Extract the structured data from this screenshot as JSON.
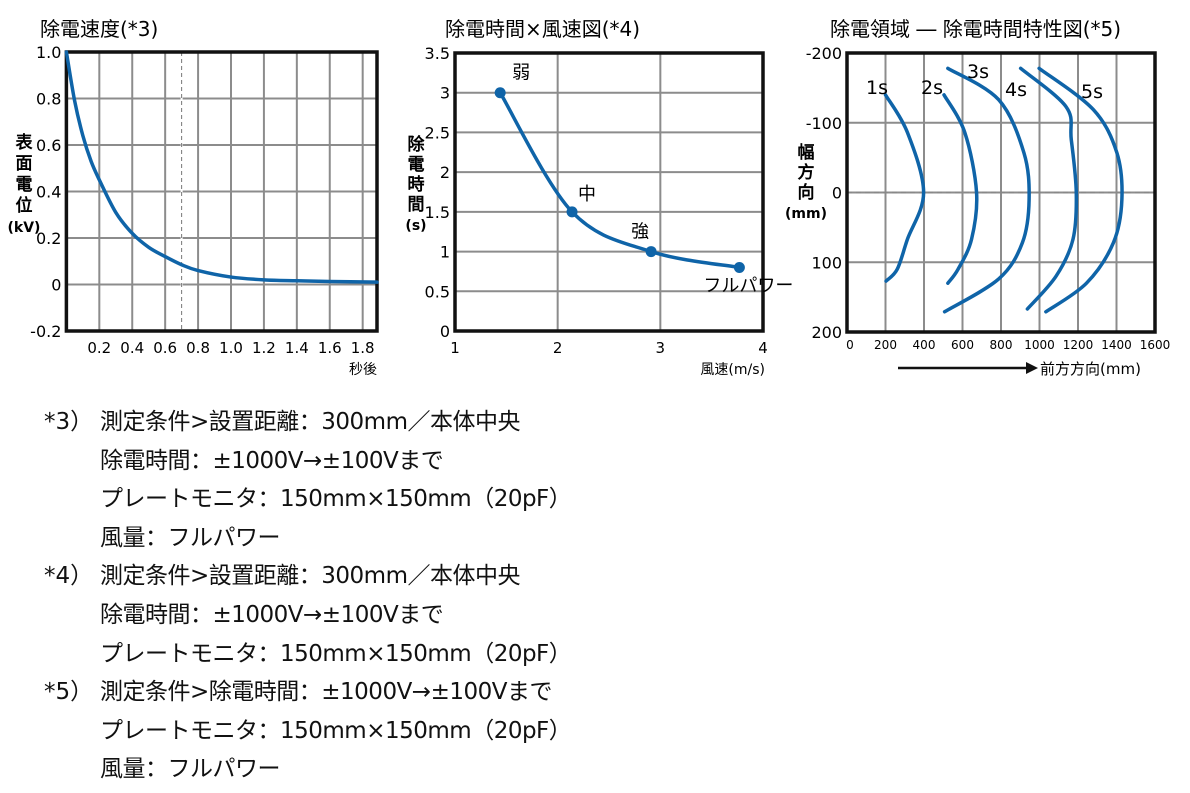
{
  "colors": {
    "curve": "#0f64a8",
    "grid": "#8c8c8c",
    "frame": "#111111"
  },
  "chart_data": [
    {
      "type": "line",
      "title": "除電速度(*3)",
      "xlabel": "秒後",
      "ylabel": [
        "表",
        "面",
        "電",
        "位",
        "(kV)"
      ],
      "xlim": [
        0,
        1.887
      ],
      "ylim": [
        -0.2,
        1.0
      ],
      "grid": true,
      "xticks": [
        0.2,
        0.4,
        0.6,
        0.8,
        1.0,
        1.2,
        1.4,
        1.6,
        1.8
      ],
      "xtick_labels": [
        "0.2",
        "0.4",
        "0.6",
        "0.8",
        "1.0",
        "1.2",
        "1.4",
        "1.6",
        "1.8"
      ],
      "yticks": [
        -0.2,
        0,
        0.2,
        0.4,
        0.6,
        0.8,
        1.0
      ],
      "ytick_labels": [
        "-0.2",
        "0",
        "0.2",
        "0.4",
        "0.6",
        "0.8",
        "1.0"
      ],
      "reference_line_x": 0.7,
      "series": [
        {
          "name": "表面電位",
          "x": [
            0,
            0.05,
            0.1,
            0.15,
            0.2,
            0.3,
            0.4,
            0.5,
            0.6,
            0.7,
            0.8,
            1.0,
            1.2,
            1.4,
            1.6,
            1.887
          ],
          "y": [
            1.0,
            0.79,
            0.64,
            0.53,
            0.45,
            0.31,
            0.22,
            0.16,
            0.12,
            0.085,
            0.06,
            0.032,
            0.02,
            0.016,
            0.013,
            0.01
          ]
        }
      ]
    },
    {
      "type": "line",
      "title": "除電時間×風速図(*4)",
      "xlabel": "風速(m/s)",
      "ylabel": [
        "除",
        "電",
        "時",
        "間",
        "(s)"
      ],
      "xlim": [
        1,
        4
      ],
      "ylim": [
        0,
        3.5
      ],
      "grid": true,
      "xticks": [
        1,
        2,
        3,
        4
      ],
      "xtick_labels": [
        "1",
        "2",
        "3",
        "4"
      ],
      "yticks": [
        0,
        0.5,
        1,
        1.5,
        2,
        2.5,
        3,
        3.5
      ],
      "ytick_labels": [
        "0",
        "0.5",
        "1",
        "1.5",
        "2",
        "2.5",
        "3",
        "3.5"
      ],
      "series": [
        {
          "name": "除電時間",
          "x": [
            1.44,
            2.14,
            2.91,
            3.77
          ],
          "y": [
            3.0,
            1.5,
            1.0,
            0.8
          ],
          "point_labels": [
            "弱",
            "中",
            "強",
            "フルパワー"
          ]
        }
      ]
    },
    {
      "type": "line",
      "title": "除電領域 ― 除電時間特性図(*5)",
      "xlabel": "前方方向(mm)",
      "ylabel": [
        "幅",
        "方",
        "向",
        "(mm)"
      ],
      "xlim": [
        0,
        1600
      ],
      "ylim": [
        200,
        -200
      ],
      "grid": true,
      "xticks": [
        0,
        200,
        400,
        600,
        800,
        1000,
        1200,
        1400,
        1600
      ],
      "xtick_labels": [
        "0",
        "200",
        "400",
        "600",
        "800",
        "1000",
        "1200",
        "1400",
        "1600"
      ],
      "yticks": [
        -200,
        -100,
        0,
        100,
        200
      ],
      "ytick_labels": [
        "-200",
        "-100",
        "0",
        "100",
        "200"
      ],
      "reference_line_y": 0,
      "series": [
        {
          "name": "1s",
          "x": [
            200,
            314,
            398,
            314,
            261,
            203
          ],
          "y": [
            -140,
            -86,
            0,
            67,
            110,
            127
          ]
        },
        {
          "name": "2s",
          "x": [
            504,
            612,
            673,
            647,
            577,
            524
          ],
          "y": [
            -140,
            -86,
            0,
            67,
            110,
            130
          ]
        },
        {
          "name": "3s",
          "x": [
            524,
            788,
            919,
            946,
            911,
            788,
            507
          ],
          "y": [
            -178,
            -133,
            -57,
            10,
            72,
            124,
            171
          ]
        },
        {
          "name": "4s",
          "x": [
            902,
            1138,
            1165,
            1191,
            1174,
            1086,
            937
          ],
          "y": [
            -178,
            -123,
            -76,
            0,
            67,
            120,
            167
          ]
        },
        {
          "name": "5s",
          "x": [
            998,
            1279,
            1402,
            1428,
            1384,
            1244,
            1033
          ],
          "y": [
            -178,
            -119,
            -57,
            10,
            72,
            130,
            171
          ]
        }
      ]
    }
  ],
  "notes": [
    {
      "marker": "*3）",
      "lines": [
        "測定条件>設置距離：300mm／本体中央",
        "除電時間：±1000V→±100Vまで",
        "プレートモニタ：150mm×150mm（20pF）",
        "風量：フルパワー"
      ]
    },
    {
      "marker": "*4）",
      "lines": [
        "測定条件>設置距離：300mm／本体中央",
        "除電時間：±1000V→±100Vまで",
        "プレートモニタ：150mm×150mm（20pF）"
      ]
    },
    {
      "marker": "*5）",
      "lines": [
        "測定条件>除電時間：±1000V→±100Vまで",
        "プレートモニタ：150mm×150mm（20pF）",
        "風量：フルパワー"
      ]
    }
  ]
}
